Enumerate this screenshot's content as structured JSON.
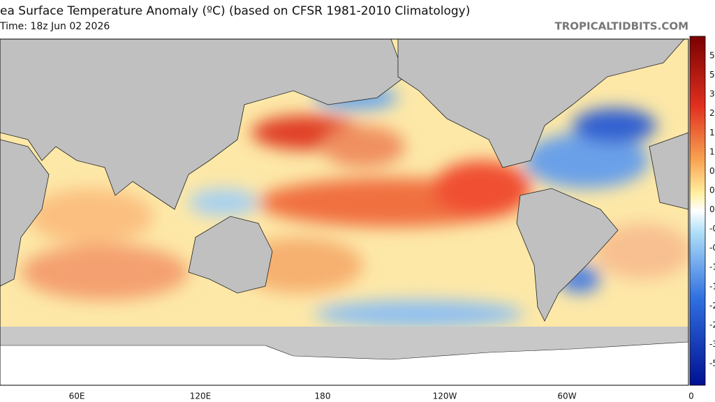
{
  "header": {
    "title": "ea Surface Temperature Anomaly (ºC) (based on CFSR 1981-2010 Climatology)",
    "subtitle": "Time: 18z Jun 02 2026",
    "brand": "TROPICALTIDBITS.COM"
  },
  "longitude_labels": [
    "60E",
    "120E",
    "180",
    "120W",
    "60W",
    "0"
  ],
  "colorbar_labels": [
    "5",
    "5",
    "3",
    "2",
    "1",
    "1",
    "0",
    "0",
    "0",
    "-0",
    "-0",
    "-1",
    "-1",
    "-2",
    "-2",
    "-3",
    "-5"
  ]
}
